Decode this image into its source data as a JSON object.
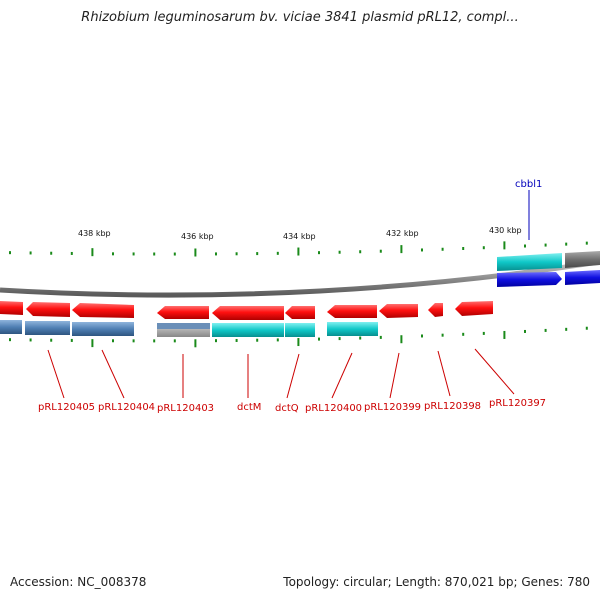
{
  "title": "Rhizobium leguminosarum bv. viciae 3841 plasmid pRL12, compl...",
  "footer": {
    "accession": "Accession: NC_008378",
    "summary": "Topology: circular; Length: 870,021 bp; Genes: 780"
  },
  "colors": {
    "backbone": "#8c8c8c",
    "forward_gene": "#ff1010",
    "steelblue_gene": "#4f7fb3",
    "cyan_gene": "#10c8c8",
    "grey_gene": "#b0b0b0",
    "blue_gene": "#1010e0",
    "dark_grey_gene": "#707070",
    "tick": "#1a8a1a",
    "label_red": "#cc0000",
    "label_blue": "#0000bb"
  },
  "kbp_labels": [
    "438 kbp",
    "436 kbp",
    "434 kbp",
    "432 kbp",
    "430 kbp"
  ],
  "gene_labels": [
    {
      "text": "pRL120405",
      "color": "red"
    },
    {
      "text": "pRL120404",
      "color": "red"
    },
    {
      "text": "pRL120403",
      "color": "red"
    },
    {
      "text": "dctM",
      "color": "red"
    },
    {
      "text": "dctQ",
      "color": "red"
    },
    {
      "text": "pRL120400",
      "color": "red"
    },
    {
      "text": "pRL120399",
      "color": "red"
    },
    {
      "text": "pRL120398",
      "color": "red"
    },
    {
      "text": "pRL120397",
      "color": "red"
    },
    {
      "text": "cbbl1",
      "color": "blue"
    }
  ]
}
